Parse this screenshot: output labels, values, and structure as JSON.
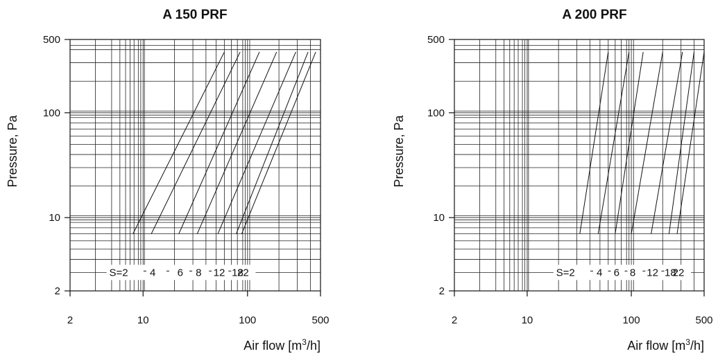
{
  "chart_data": [
    {
      "type": "line",
      "title": "A 150 PRF",
      "xlabel_main": "Air flow [m",
      "xlabel_sup": "3",
      "xlabel_end": "/h]",
      "ylabel": "Pressure, Pa",
      "xscale": "log",
      "yscale": "log",
      "xlim": [
        2,
        500
      ],
      "ylim": [
        2,
        500
      ],
      "x_ticks": [
        "2",
        "10",
        "100",
        "500"
      ],
      "y_ticks": [
        "2",
        "10",
        "100",
        "500"
      ],
      "grid": true,
      "series_labels": [
        "S=2",
        "4",
        "6",
        "8",
        "12",
        "18",
        "22"
      ],
      "series": [
        {
          "name": "S=2",
          "x": [
            8,
            60
          ],
          "y": [
            7,
            380
          ]
        },
        {
          "name": "4",
          "x": [
            12,
            85
          ],
          "y": [
            7,
            380
          ]
        },
        {
          "name": "6",
          "x": [
            22,
            130
          ],
          "y": [
            7,
            380
          ]
        },
        {
          "name": "8",
          "x": [
            33,
            190
          ],
          "y": [
            7,
            380
          ]
        },
        {
          "name": "12",
          "x": [
            52,
            290
          ],
          "y": [
            7,
            380
          ]
        },
        {
          "name": "18",
          "x": [
            78,
            380
          ],
          "y": [
            7,
            380
          ]
        },
        {
          "name": "22",
          "x": [
            88,
            450
          ],
          "y": [
            7,
            380
          ]
        }
      ]
    },
    {
      "type": "line",
      "title": "A 200 PRF",
      "xlabel_main": "Air flow [m",
      "xlabel_sup": "3",
      "xlabel_end": "/h]",
      "ylabel": "Pressure, Pa",
      "xscale": "log",
      "yscale": "log",
      "xlim": [
        2,
        500
      ],
      "ylim": [
        2,
        500
      ],
      "x_ticks": [
        "2",
        "10",
        "100",
        "500"
      ],
      "y_ticks": [
        "2",
        "10",
        "100",
        "500"
      ],
      "grid": true,
      "series_labels": [
        "S=2",
        "4",
        "6",
        "8",
        "12",
        "18",
        "22"
      ],
      "series": [
        {
          "name": "S=2",
          "x": [
            32,
            60
          ],
          "y": [
            7,
            380
          ]
        },
        {
          "name": "4",
          "x": [
            48,
            95
          ],
          "y": [
            7,
            380
          ]
        },
        {
          "name": "6",
          "x": [
            70,
            130
          ],
          "y": [
            7,
            380
          ]
        },
        {
          "name": "8",
          "x": [
            100,
            200
          ],
          "y": [
            7,
            380
          ]
        },
        {
          "name": "12",
          "x": [
            155,
            310
          ],
          "y": [
            7,
            380
          ]
        },
        {
          "name": "18",
          "x": [
            230,
            400
          ],
          "y": [
            7,
            380
          ]
        },
        {
          "name": "22",
          "x": [
            275,
            500
          ],
          "y": [
            7,
            380
          ]
        }
      ]
    }
  ]
}
